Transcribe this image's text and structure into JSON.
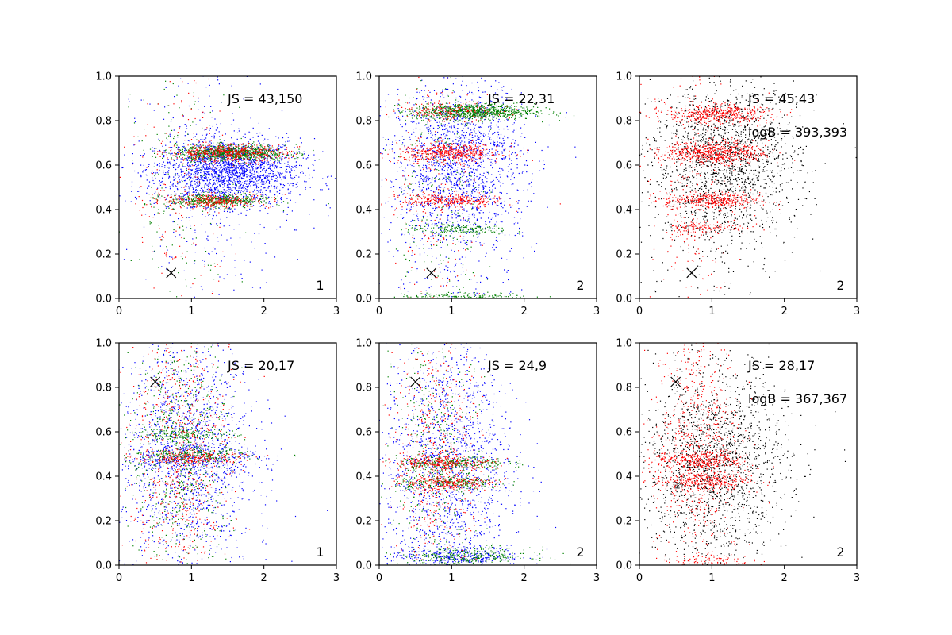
{
  "chart_data": [
    {
      "type": "scatter",
      "xlim": [
        0,
        3
      ],
      "ylim": [
        0,
        1
      ],
      "xticks": [
        "0",
        "1",
        "2",
        "3"
      ],
      "yticks": [
        "0.0",
        "0.2",
        "0.4",
        "0.6",
        "0.8",
        "1.0"
      ],
      "annotations": [
        "JS = 43,150"
      ],
      "panel_label": "1",
      "marker_x": {
        "x": 0.72,
        "y": 0.115
      },
      "colors": {
        "blue": "#0000ff",
        "green": "#008000",
        "red": "#ff0000"
      },
      "series": [
        {
          "color": "blue",
          "clusters": [
            {
              "cx": 1.5,
              "cy": 0.57,
              "sx": 0.5,
              "sy": 0.075,
              "n": 1900
            },
            {
              "cx": 1.2,
              "cy": 0.5,
              "sx": 0.6,
              "sy": 0.3,
              "n": 350
            }
          ]
        },
        {
          "color": "green",
          "clusters": [
            {
              "cx": 1.55,
              "cy": 0.655,
              "sx": 0.38,
              "sy": 0.018,
              "n": 850
            },
            {
              "cx": 1.35,
              "cy": 0.44,
              "sx": 0.36,
              "sy": 0.015,
              "n": 450
            },
            {
              "cx": 0.9,
              "cy": 0.5,
              "sx": 0.35,
              "sy": 0.3,
              "n": 180
            }
          ]
        },
        {
          "color": "red",
          "clusters": [
            {
              "cx": 1.5,
              "cy": 0.655,
              "sx": 0.4,
              "sy": 0.02,
              "n": 480
            },
            {
              "cx": 1.35,
              "cy": 0.44,
              "sx": 0.38,
              "sy": 0.016,
              "n": 300
            },
            {
              "cx": 0.85,
              "cy": 0.5,
              "sx": 0.35,
              "sy": 0.3,
              "n": 180
            }
          ]
        }
      ]
    },
    {
      "type": "scatter",
      "xlim": [
        0,
        3
      ],
      "ylim": [
        0,
        1
      ],
      "xticks": [
        "0",
        "1",
        "2",
        "3"
      ],
      "yticks": [
        "0.0",
        "0.2",
        "0.4",
        "0.6",
        "0.8",
        "1.0"
      ],
      "annotations": [
        "JS = 22,31"
      ],
      "panel_label": "2",
      "marker_x": {
        "x": 0.72,
        "y": 0.115
      },
      "colors": {
        "blue": "#0000ff",
        "green": "#008000",
        "red": "#ff0000"
      },
      "series": [
        {
          "color": "blue",
          "clusters": [
            {
              "cx": 1.1,
              "cy": 0.62,
              "sx": 0.45,
              "sy": 0.18,
              "n": 1500
            },
            {
              "cx": 1.0,
              "cy": 0.4,
              "sx": 0.5,
              "sy": 0.28,
              "n": 350
            }
          ]
        },
        {
          "color": "green",
          "clusters": [
            {
              "cx": 1.3,
              "cy": 0.84,
              "sx": 0.42,
              "sy": 0.018,
              "n": 900
            },
            {
              "cx": 1.1,
              "cy": 0.31,
              "sx": 0.35,
              "sy": 0.012,
              "n": 160
            },
            {
              "cx": 1.2,
              "cy": 0.01,
              "sx": 0.45,
              "sy": 0.008,
              "n": 150
            },
            {
              "cx": 0.8,
              "cy": 0.5,
              "sx": 0.3,
              "sy": 0.3,
              "n": 250
            }
          ]
        },
        {
          "color": "red",
          "clusters": [
            {
              "cx": 1.0,
              "cy": 0.655,
              "sx": 0.35,
              "sy": 0.02,
              "n": 450
            },
            {
              "cx": 1.0,
              "cy": 0.44,
              "sx": 0.35,
              "sy": 0.016,
              "n": 300
            },
            {
              "cx": 1.0,
              "cy": 0.84,
              "sx": 0.35,
              "sy": 0.02,
              "n": 180
            },
            {
              "cx": 0.75,
              "cy": 0.5,
              "sx": 0.3,
              "sy": 0.3,
              "n": 200
            }
          ]
        }
      ]
    },
    {
      "type": "scatter",
      "xlim": [
        0,
        3
      ],
      "ylim": [
        0,
        1
      ],
      "xticks": [
        "0",
        "1",
        "2",
        "3"
      ],
      "yticks": [
        "0.0",
        "0.2",
        "0.4",
        "0.6",
        "0.8",
        "1.0"
      ],
      "annotations": [
        "JS = 45,43",
        "logB = 393,393"
      ],
      "panel_label": "2",
      "marker_x": {
        "x": 0.72,
        "y": 0.115
      },
      "colors": {
        "black": "#000000",
        "red": "#ff0000"
      },
      "series": [
        {
          "color": "black",
          "clusters": [
            {
              "cx": 1.2,
              "cy": 0.62,
              "sx": 0.5,
              "sy": 0.17,
              "n": 1500
            },
            {
              "cx": 1.0,
              "cy": 0.45,
              "sx": 0.55,
              "sy": 0.28,
              "n": 300
            }
          ]
        },
        {
          "color": "red",
          "clusters": [
            {
              "cx": 1.1,
              "cy": 0.83,
              "sx": 0.36,
              "sy": 0.022,
              "n": 450
            },
            {
              "cx": 1.05,
              "cy": 0.655,
              "sx": 0.36,
              "sy": 0.025,
              "n": 550
            },
            {
              "cx": 1.0,
              "cy": 0.44,
              "sx": 0.33,
              "sy": 0.018,
              "n": 350
            },
            {
              "cx": 0.9,
              "cy": 0.32,
              "sx": 0.3,
              "sy": 0.015,
              "n": 120
            },
            {
              "cx": 0.75,
              "cy": 0.5,
              "sx": 0.3,
              "sy": 0.3,
              "n": 250
            }
          ]
        }
      ]
    },
    {
      "type": "scatter",
      "xlim": [
        0,
        3
      ],
      "ylim": [
        0,
        1
      ],
      "xticks": [
        "0",
        "1",
        "2",
        "3"
      ],
      "yticks": [
        "0.0",
        "0.2",
        "0.4",
        "0.6",
        "0.8",
        "1.0"
      ],
      "annotations": [
        "JS = 20,17"
      ],
      "panel_label": "1",
      "marker_x": {
        "x": 0.5,
        "y": 0.825
      },
      "colors": {
        "blue": "#0000ff",
        "green": "#008000",
        "red": "#ff0000"
      },
      "series": [
        {
          "color": "blue",
          "clusters": [
            {
              "cx": 0.95,
              "cy": 0.5,
              "sx": 0.45,
              "sy": 0.28,
              "n": 1500
            },
            {
              "cx": 1.0,
              "cy": 0.48,
              "sx": 0.5,
              "sy": 0.03,
              "n": 300
            }
          ]
        },
        {
          "color": "green",
          "clusters": [
            {
              "cx": 0.85,
              "cy": 0.5,
              "sx": 0.35,
              "sy": 0.29,
              "n": 700
            },
            {
              "cx": 1.0,
              "cy": 0.49,
              "sx": 0.4,
              "sy": 0.015,
              "n": 250
            },
            {
              "cx": 0.9,
              "cy": 0.59,
              "sx": 0.35,
              "sy": 0.012,
              "n": 150
            }
          ]
        },
        {
          "color": "red",
          "clusters": [
            {
              "cx": 0.85,
              "cy": 0.5,
              "sx": 0.35,
              "sy": 0.29,
              "n": 650
            },
            {
              "cx": 1.0,
              "cy": 0.48,
              "sx": 0.38,
              "sy": 0.015,
              "n": 200
            }
          ]
        }
      ]
    },
    {
      "type": "scatter",
      "xlim": [
        0,
        3
      ],
      "ylim": [
        0,
        1
      ],
      "xticks": [
        "0",
        "1",
        "2",
        "3"
      ],
      "yticks": [
        "0.0",
        "0.2",
        "0.4",
        "0.6",
        "0.8",
        "1.0"
      ],
      "annotations": [
        "JS = 24,9"
      ],
      "panel_label": "2",
      "marker_x": {
        "x": 0.5,
        "y": 0.825
      },
      "colors": {
        "blue": "#0000ff",
        "green": "#008000",
        "red": "#ff0000"
      },
      "series": [
        {
          "color": "blue",
          "clusters": [
            {
              "cx": 0.95,
              "cy": 0.45,
              "sx": 0.45,
              "sy": 0.28,
              "n": 1500
            },
            {
              "cx": 1.1,
              "cy": 0.04,
              "sx": 0.45,
              "sy": 0.02,
              "n": 300
            }
          ]
        },
        {
          "color": "green",
          "clusters": [
            {
              "cx": 1.0,
              "cy": 0.46,
              "sx": 0.38,
              "sy": 0.015,
              "n": 250
            },
            {
              "cx": 1.0,
              "cy": 0.37,
              "sx": 0.38,
              "sy": 0.015,
              "n": 250
            },
            {
              "cx": 1.2,
              "cy": 0.04,
              "sx": 0.45,
              "sy": 0.02,
              "n": 300
            },
            {
              "cx": 0.8,
              "cy": 0.5,
              "sx": 0.3,
              "sy": 0.29,
              "n": 400
            }
          ]
        },
        {
          "color": "red",
          "clusters": [
            {
              "cx": 0.9,
              "cy": 0.46,
              "sx": 0.35,
              "sy": 0.015,
              "n": 250
            },
            {
              "cx": 0.9,
              "cy": 0.37,
              "sx": 0.35,
              "sy": 0.015,
              "n": 220
            },
            {
              "cx": 0.8,
              "cy": 0.5,
              "sx": 0.3,
              "sy": 0.29,
              "n": 500
            }
          ]
        }
      ]
    },
    {
      "type": "scatter",
      "xlim": [
        0,
        3
      ],
      "ylim": [
        0,
        1
      ],
      "xticks": [
        "0",
        "1",
        "2",
        "3"
      ],
      "yticks": [
        "0.0",
        "0.2",
        "0.4",
        "0.6",
        "0.8",
        "1.0"
      ],
      "annotations": [
        "JS = 28,17",
        "logB = 367,367"
      ],
      "panel_label": "2",
      "marker_x": {
        "x": 0.5,
        "y": 0.825
      },
      "colors": {
        "black": "#000000",
        "red": "#ff0000"
      },
      "series": [
        {
          "color": "black",
          "clusters": [
            {
              "cx": 1.05,
              "cy": 0.45,
              "sx": 0.5,
              "sy": 0.2,
              "n": 1400
            },
            {
              "cx": 0.9,
              "cy": 0.5,
              "sx": 0.5,
              "sy": 0.3,
              "n": 350
            }
          ]
        },
        {
          "color": "red",
          "clusters": [
            {
              "cx": 0.85,
              "cy": 0.47,
              "sx": 0.33,
              "sy": 0.02,
              "n": 300
            },
            {
              "cx": 0.85,
              "cy": 0.38,
              "sx": 0.33,
              "sy": 0.02,
              "n": 280
            },
            {
              "cx": 0.8,
              "cy": 0.55,
              "sx": 0.3,
              "sy": 0.27,
              "n": 700
            },
            {
              "cx": 0.95,
              "cy": 0.02,
              "sx": 0.3,
              "sy": 0.015,
              "n": 100
            }
          ]
        }
      ]
    }
  ]
}
